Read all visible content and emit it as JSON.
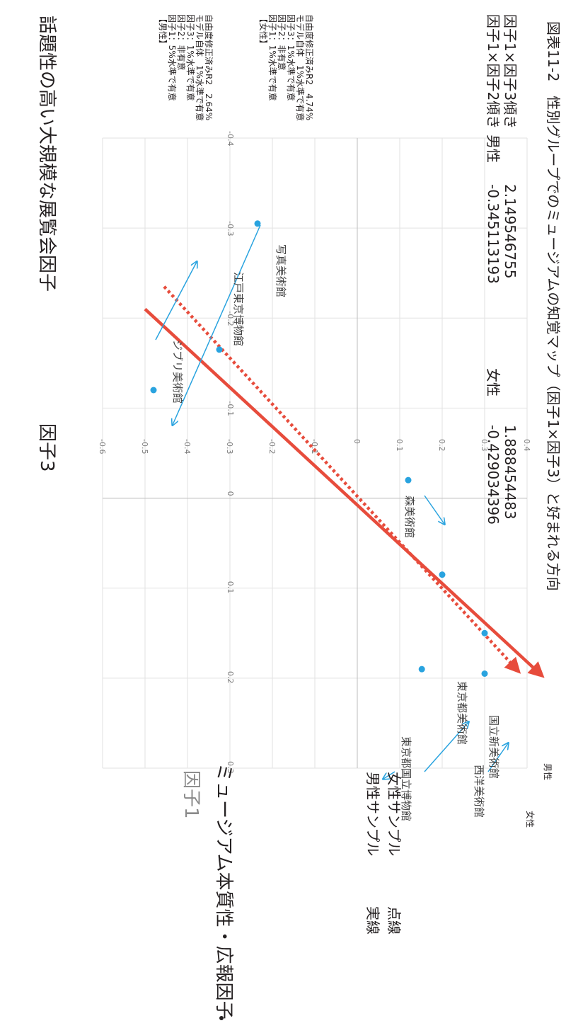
{
  "chart_data": {
    "type": "scatter",
    "title": "",
    "x_axis": {
      "name": "因子1",
      "name_sub": "ミュージアム本質性・広報因子",
      "range": [
        -0.4,
        0.3
      ],
      "ticks": [
        "-0.4",
        "-0.3",
        "-0.2",
        "-0.1",
        "0",
        "0.1",
        "0.2",
        "0.3"
      ]
    },
    "y_axis": {
      "name": "因子3",
      "name_sub": "話題性の高い大規模な展覧会因子",
      "range": [
        -0.6,
        0.4
      ],
      "ticks": [
        "0.4",
        "0.3",
        "0.2",
        "0.1",
        "0",
        "-0.1",
        "-0.2",
        "-0.3",
        "-0.4",
        "-0.5",
        "-0.6"
      ]
    },
    "grid": true,
    "points": [
      {
        "label": "西洋美術館",
        "x": 0.195,
        "y": 0.3
      },
      {
        "label": "東京都国立博物館",
        "x": 0.19,
        "y": 0.152
      },
      {
        "label": "国立新美術館",
        "x": 0.15,
        "y": 0.3
      },
      {
        "label": "東京都美術館",
        "x": 0.085,
        "y": 0.2
      },
      {
        "label": "森美術館",
        "x": -0.02,
        "y": 0.12
      },
      {
        "label": "江戸東京博物館",
        "x": -0.165,
        "y": -0.325
      },
      {
        "label": "ジブリ美術館",
        "x": -0.12,
        "y": -0.48
      },
      {
        "label": "写真美術館",
        "x": -0.305,
        "y": -0.235
      }
    ],
    "series": [
      {
        "name": "男性",
        "style": "solid",
        "color": "#e74c3c",
        "slope": -0.345113193,
        "factor3_slope": 2.149546755,
        "from": [
          -0.21,
          -0.5
        ],
        "to": [
          0.195,
          0.43
        ]
      },
      {
        "name": "女性",
        "style": "dotted",
        "color": "#e74c3c",
        "slope": -0.429034396,
        "factor3_slope": 1.888454483,
        "from": [
          -0.235,
          -0.455
        ],
        "to": [
          0.19,
          0.375
        ]
      }
    ],
    "legend": {
      "male": "男性サンプル",
      "male_style": "実線",
      "female": "女性サンプル",
      "female_style": "点線"
    },
    "end_labels": {
      "male": "男性",
      "female": "女性"
    },
    "stats": {
      "headers": [
        "男性",
        "女性"
      ],
      "rows": [
        {
          "label": "因子1×因子2傾き",
          "male": "-0.345113193",
          "female": "-0.429034396"
        },
        {
          "label": "因子1×因子3傾き",
          "male": "2.149546755",
          "female": "1.888454483"
        }
      ]
    },
    "notes": {
      "male": [
        "【男性】",
        "因子1：5%水準で有意",
        "因子2：非有意",
        "因子3：1%水準で有意",
        "モデル自体　1%水準で有意",
        "自由度修正済みR2　2.64%"
      ],
      "female": [
        "【女性】",
        "因子1：1%水準で有意",
        "因子2：非有意",
        "因子3：1%水準で有意",
        "モデル自体　1%水準で有意",
        "自由度修正済みR2　4.74%"
      ]
    },
    "caption": "図表11-2　性別グループでのミュージアムの知覚マップ（因子1×因子3）と好まれる方向"
  },
  "colors": {
    "dot": "#29a3df",
    "line": "#e74c3c",
    "grid": "#e2e2e2"
  }
}
